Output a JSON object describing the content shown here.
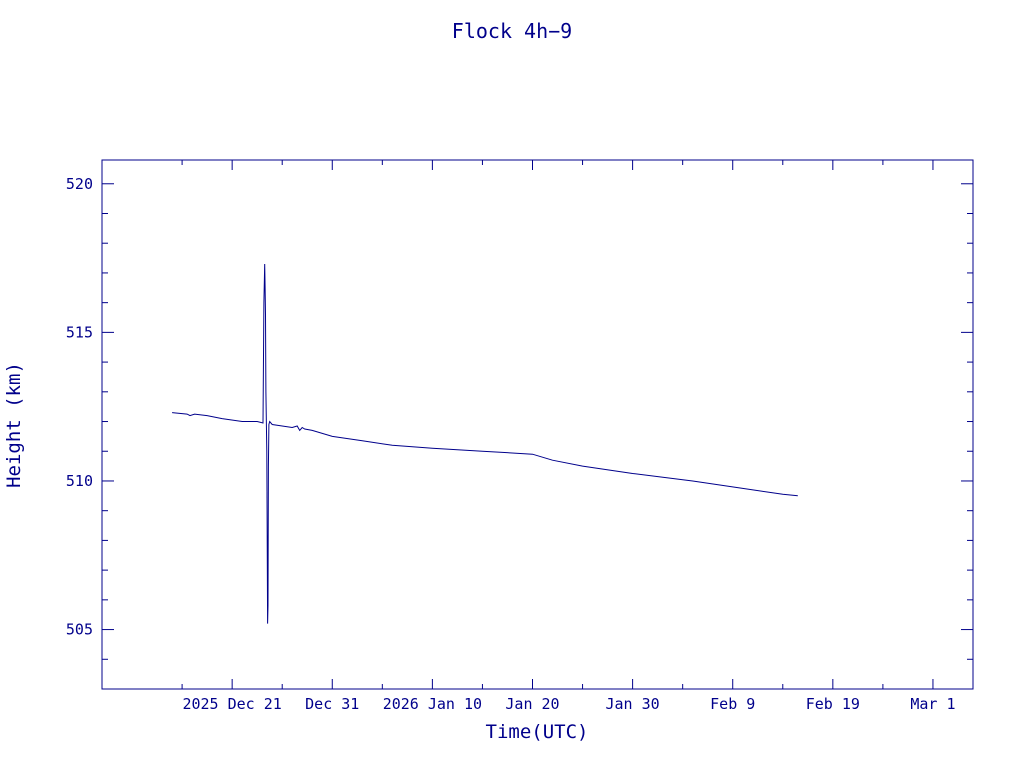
{
  "chart_data": {
    "type": "line",
    "title": "Flock 4h−9",
    "xlabel": "Time(UTC)",
    "ylabel": "Height (km)",
    "colors": {
      "line": "#00008b",
      "axis": "#00008b",
      "text": "#00008b",
      "background": "#ffffff"
    },
    "grid": false,
    "xlim": [
      "2025-12-08",
      "2026-03-05"
    ],
    "ylim": [
      503,
      520.8
    ],
    "x_ticks": [
      {
        "label": "2025 Dec 21",
        "value": "2025-12-21"
      },
      {
        "label": "Dec 31",
        "value": "2025-12-31"
      },
      {
        "label": "2026 Jan 10",
        "value": "2026-01-10"
      },
      {
        "label": "Jan 20",
        "value": "2026-01-20"
      },
      {
        "label": "Jan 30",
        "value": "2026-01-30"
      },
      {
        "label": "Feb  9",
        "value": "2026-02-09"
      },
      {
        "label": "Feb 19",
        "value": "2026-02-19"
      },
      {
        "label": "Mar  1",
        "value": "2026-03-01"
      }
    ],
    "x_minor_ticks": [
      "2025-12-16",
      "2025-12-26",
      "2026-01-05",
      "2026-01-15",
      "2026-01-25",
      "2026-02-04",
      "2026-02-14",
      "2026-02-24"
    ],
    "y_ticks": [
      {
        "label": "505",
        "value": 505
      },
      {
        "label": "510",
        "value": 510
      },
      {
        "label": "515",
        "value": 515
      },
      {
        "label": "520",
        "value": 520
      }
    ],
    "y_minor_step": 1,
    "series": [
      {
        "x": [
          "2025-12-15T00:00",
          "2025-12-16T12:00",
          "2025-12-16T19:00",
          "2025-12-17T06:00",
          "2025-12-18T12:00",
          "2025-12-20T00:00",
          "2025-12-22T00:00",
          "2025-12-23T12:00",
          "2025-12-24T02:00",
          "2025-12-24T04:00",
          "2025-12-24T06:00",
          "2025-12-24T07:00",
          "2025-12-24T08:00",
          "2025-12-24T09:00",
          "2025-12-24T11:00",
          "2025-12-24T13:00",
          "2025-12-24T14:00",
          "2025-12-24T15:00",
          "2025-12-24T16:00",
          "2025-12-24T18:00",
          "2025-12-25T00:00",
          "2025-12-26T00:00",
          "2025-12-27T00:00",
          "2025-12-27T12:00",
          "2025-12-27T18:00",
          "2025-12-28T00:00",
          "2025-12-28T06:00",
          "2025-12-29T00:00",
          "2025-12-31T00:00",
          "2026-01-03T00:00",
          "2026-01-06T00:00",
          "2026-01-10T00:00",
          "2026-01-15T00:00",
          "2026-01-20T00:00",
          "2026-01-21T12:00",
          "2026-01-22T00:00",
          "2026-01-25T00:00",
          "2026-01-30T00:00",
          "2026-02-05T00:00",
          "2026-02-10T00:00",
          "2026-02-14T00:00",
          "2026-02-15T12:00"
        ],
        "y": [
          512.3,
          512.25,
          512.2,
          512.25,
          512.2,
          512.1,
          512.0,
          512.0,
          511.95,
          516.0,
          517.3,
          516.5,
          515.6,
          513.0,
          511.0,
          505.2,
          505.8,
          510.5,
          511.9,
          512.0,
          511.9,
          511.85,
          511.8,
          511.85,
          511.7,
          511.8,
          511.75,
          511.7,
          511.5,
          511.35,
          511.2,
          511.1,
          511.0,
          510.9,
          510.75,
          510.7,
          510.5,
          510.25,
          510.0,
          509.75,
          509.55,
          509.5
        ]
      }
    ]
  }
}
